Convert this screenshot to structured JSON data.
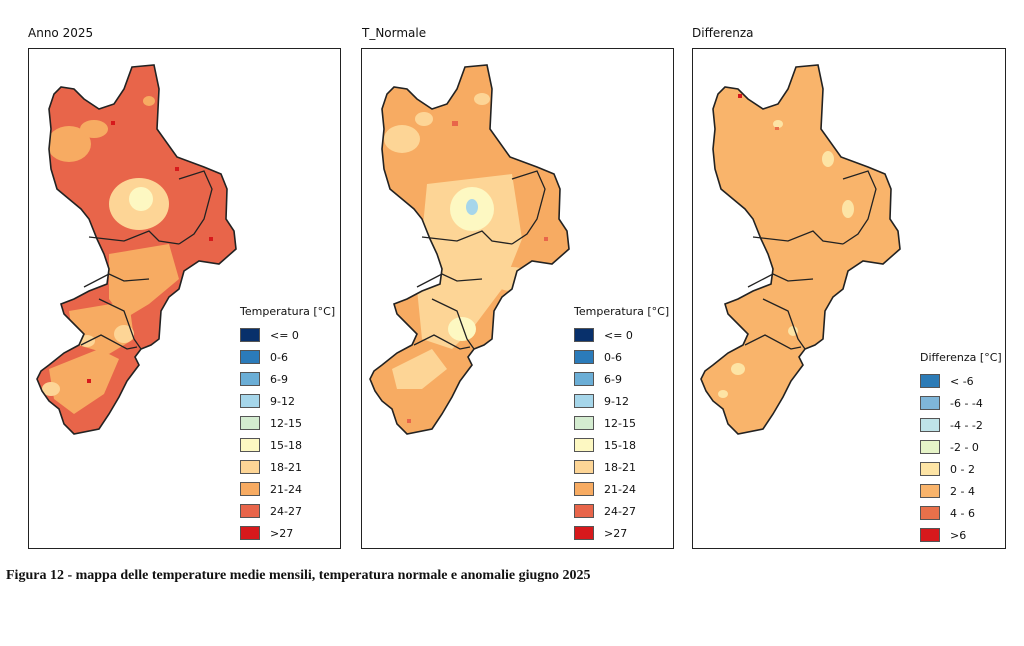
{
  "panels": [
    {
      "title": "Anno 2025",
      "legend": {
        "title": "Temperatura [°C]",
        "items": [
          {
            "label": "<= 0",
            "color": "#08306b"
          },
          {
            "label": "0-6",
            "color": "#2b7bba"
          },
          {
            "label": "6-9",
            "color": "#6baed6"
          },
          {
            "label": "9-12",
            "color": "#a6d6ea"
          },
          {
            "label": "12-15",
            "color": "#d4ecd0"
          },
          {
            "label": "15-18",
            "color": "#fdf8c2"
          },
          {
            "label": "18-21",
            "color": "#fdd596"
          },
          {
            "label": "21-24",
            "color": "#f7ab62"
          },
          {
            "label": "24-27",
            "color": "#e8654a"
          },
          {
            "label": ">27",
            "color": "#d7191c"
          }
        ]
      }
    },
    {
      "title": "T_Normale",
      "legend": {
        "title": "Temperatura [°C]",
        "items": [
          {
            "label": "<= 0",
            "color": "#08306b"
          },
          {
            "label": "0-6",
            "color": "#2b7bba"
          },
          {
            "label": "6-9",
            "color": "#6baed6"
          },
          {
            "label": "9-12",
            "color": "#a6d6ea"
          },
          {
            "label": "12-15",
            "color": "#d4ecd0"
          },
          {
            "label": "15-18",
            "color": "#fdf8c2"
          },
          {
            "label": "18-21",
            "color": "#fdd596"
          },
          {
            "label": "21-24",
            "color": "#f7ab62"
          },
          {
            "label": "24-27",
            "color": "#e8654a"
          },
          {
            "label": ">27",
            "color": "#d7191c"
          }
        ]
      }
    },
    {
      "title": "Differenza",
      "legend": {
        "title": "Differenza [°C]",
        "items": [
          {
            "label": "< -6",
            "color": "#2c7bb6"
          },
          {
            "label": "-6 - -4",
            "color": "#7fb6d9"
          },
          {
            "label": "-4 - -2",
            "color": "#bfe3e8"
          },
          {
            "label": "-2 - 0",
            "color": "#e6f4c8"
          },
          {
            "label": "0 - 2",
            "color": "#fde4a5"
          },
          {
            "label": "2 - 4",
            "color": "#f9b46b"
          },
          {
            "label": "4 - 6",
            "color": "#e9704a"
          },
          {
            "label": ">6",
            "color": "#d7191c"
          }
        ]
      }
    }
  ],
  "caption": "Figura 12 - mappa delle temperature medie mensili, temperatura normale e anomalie giugno 2025"
}
